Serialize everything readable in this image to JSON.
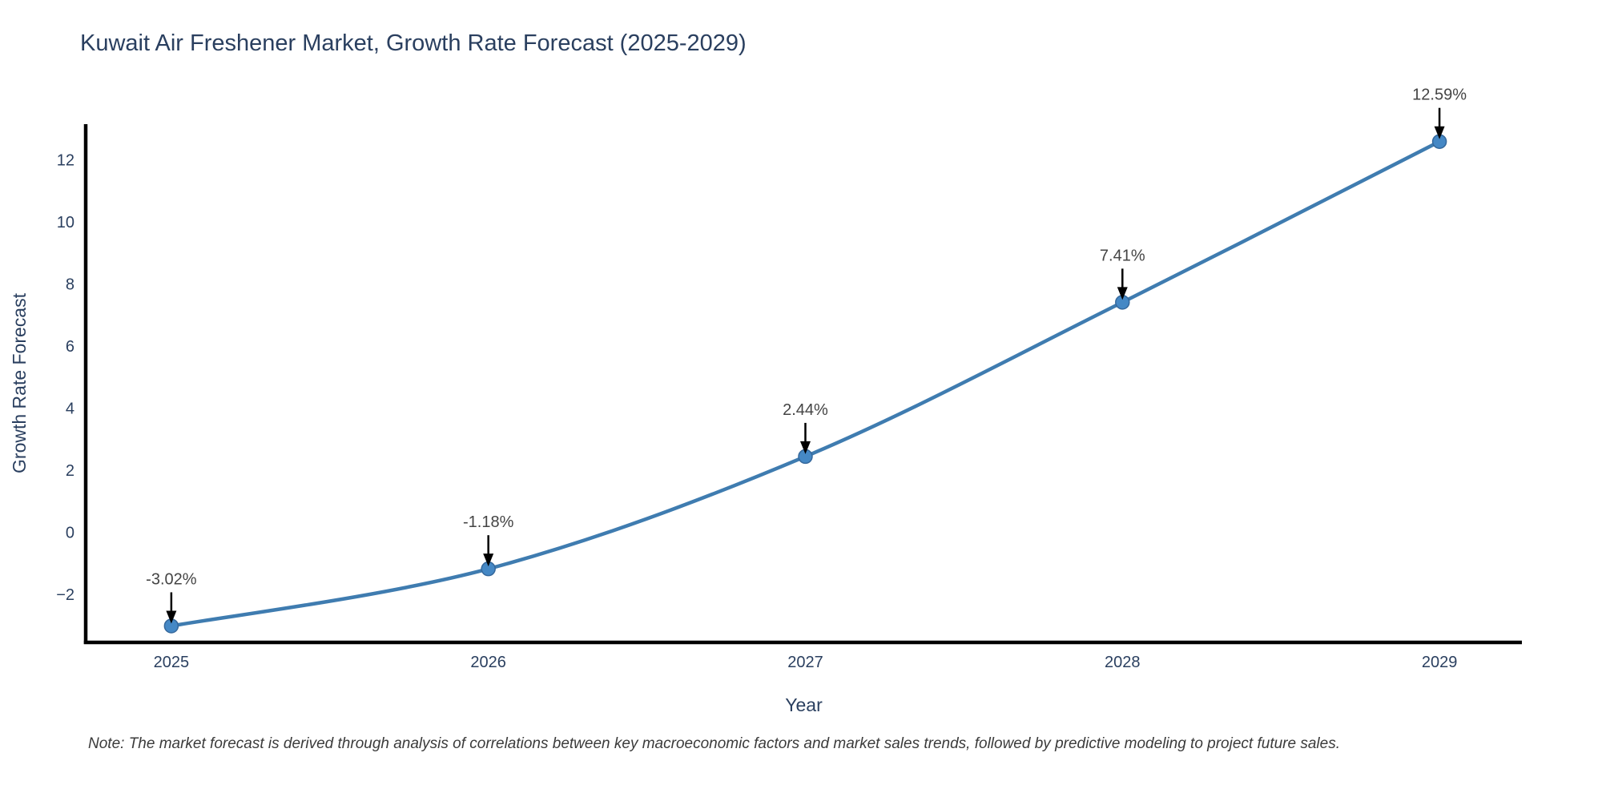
{
  "page": {
    "background_color": "#ffffff"
  },
  "chart_data": {
    "type": "line",
    "title": "Kuwait Air Freshener Market, Growth Rate Forecast (2025-2029)",
    "xlabel": "Year",
    "ylabel": "Growth Rate Forecast",
    "x": [
      2025,
      2026,
      2027,
      2028,
      2029
    ],
    "series": [
      {
        "name": "Growth Rate Forecast",
        "values": [
          -3.02,
          -1.18,
          2.44,
          7.41,
          12.59
        ]
      }
    ],
    "point_labels": [
      "-3.02%",
      "-1.18%",
      "2.44%",
      "7.41%",
      "12.59%"
    ],
    "x_tick_labels": [
      "2025",
      "2026",
      "2027",
      "2028",
      "2029"
    ],
    "y_tick_values": [
      12,
      10,
      8,
      6,
      4,
      2,
      0,
      -2
    ],
    "y_tick_labels": [
      "12",
      "10",
      "8",
      "6",
      "4",
      "2",
      "0",
      "−2"
    ],
    "xlim": [
      2024.73,
      2029.26
    ],
    "ylim": [
      -3.55,
      13.15
    ],
    "grid": false,
    "legend": "none",
    "line_shape": "spline",
    "line_color": "#3f7cb0",
    "marker_color": "#4588c5",
    "marker_edge_color": "#35689c",
    "axis_color": "#000000",
    "arrow_color": "#000000",
    "title_color": "#2a3f5f",
    "tick_color": "#2a3f5f",
    "annotation_color": "#444444"
  },
  "note": {
    "text": "Note: The market forecast is derived through analysis of correlations between key macroeconomic factors and market sales trends, followed by predictive modeling to project future sales."
  }
}
